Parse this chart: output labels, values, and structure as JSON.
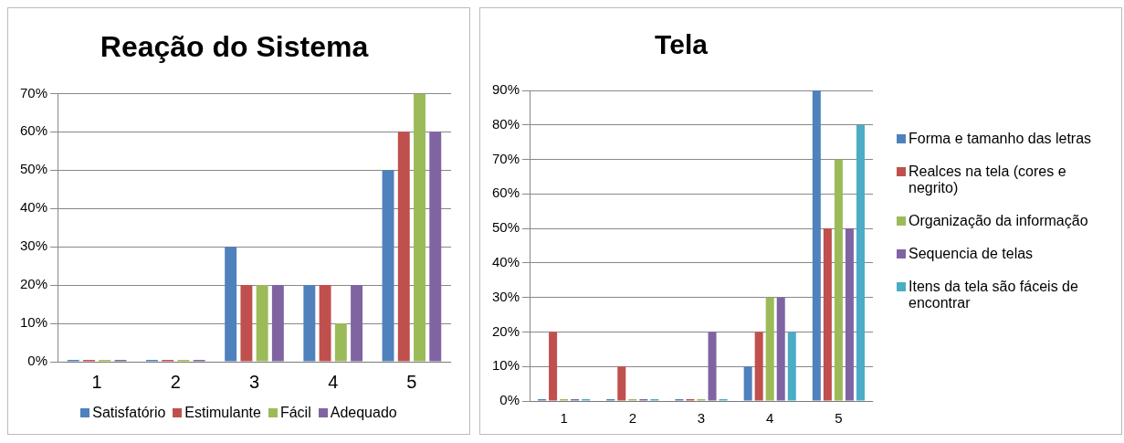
{
  "chart_data": [
    {
      "type": "bar",
      "title": "Reação do Sistema",
      "categories": [
        "1",
        "2",
        "3",
        "4",
        "5"
      ],
      "series": [
        {
          "name": "Satisfatório",
          "color": "#4f81bd",
          "values": [
            0,
            0,
            30,
            20,
            50
          ]
        },
        {
          "name": "Estimulante",
          "color": "#c0504d",
          "values": [
            0,
            0,
            20,
            20,
            60
          ]
        },
        {
          "name": "Fácil",
          "color": "#9bbb59",
          "values": [
            0,
            0,
            20,
            10,
            70
          ]
        },
        {
          "name": "Adequado",
          "color": "#8064a2",
          "values": [
            0,
            0,
            20,
            20,
            60
          ]
        }
      ],
      "ylim": [
        0,
        70
      ],
      "yticks": [
        {
          "value": 0,
          "label": "0%"
        },
        {
          "value": 10,
          "label": "10%"
        },
        {
          "value": 20,
          "label": "20%"
        },
        {
          "value": 30,
          "label": "30%"
        },
        {
          "value": 40,
          "label": "40%"
        },
        {
          "value": 50,
          "label": "50%"
        },
        {
          "value": 60,
          "label": "60%"
        },
        {
          "value": 70,
          "label": "70%"
        }
      ],
      "grid": "y",
      "legend": "bottom"
    },
    {
      "type": "bar",
      "title": "Tela",
      "categories": [
        "1",
        "2",
        "3",
        "4",
        "5"
      ],
      "series": [
        {
          "name": "Forma e tamanho das letras",
          "color": "#4f81bd",
          "values": [
            0,
            0,
            0,
            10,
            90
          ]
        },
        {
          "name": "Realces na tela (cores e negrito)",
          "color": "#c0504d",
          "values": [
            20,
            10,
            0,
            20,
            50
          ]
        },
        {
          "name": "Organização da informação",
          "color": "#9bbb59",
          "values": [
            0,
            0,
            0,
            30,
            70
          ]
        },
        {
          "name": "Sequencia de telas",
          "color": "#8064a2",
          "values": [
            0,
            0,
            20,
            30,
            50
          ]
        },
        {
          "name": "Itens da tela são fáceis de encontrar",
          "color": "#4bacc6",
          "values": [
            0,
            0,
            0,
            20,
            80
          ]
        }
      ],
      "ylim": [
        0,
        90
      ],
      "yticks": [
        {
          "value": 0,
          "label": "0%"
        },
        {
          "value": 10,
          "label": "10%"
        },
        {
          "value": 20,
          "label": "20%"
        },
        {
          "value": 30,
          "label": "30%"
        },
        {
          "value": 40,
          "label": "40%"
        },
        {
          "value": 50,
          "label": "50%"
        },
        {
          "value": 60,
          "label": "60%"
        },
        {
          "value": 70,
          "label": "70%"
        },
        {
          "value": 80,
          "label": "80%"
        },
        {
          "value": 90,
          "label": "90%"
        }
      ],
      "grid": "y",
      "legend": "right"
    }
  ]
}
